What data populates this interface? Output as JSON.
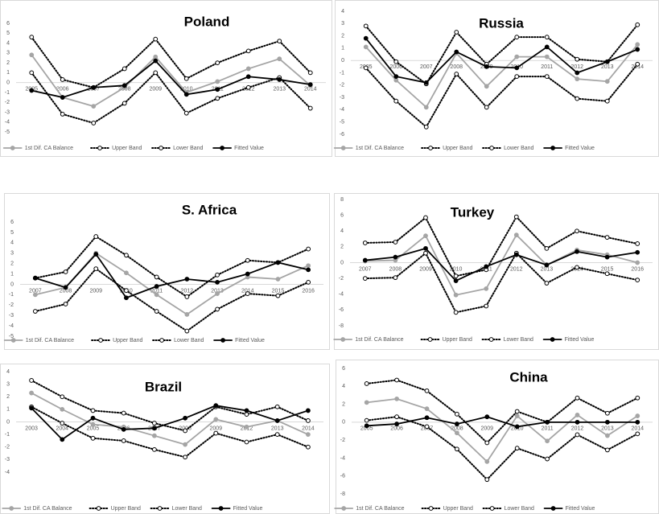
{
  "chart_data": [
    {
      "type": "line",
      "title": "Poland",
      "categories": [
        "2005",
        "2006",
        "2007",
        "2008",
        "2009",
        "2010",
        "2011",
        "2012",
        "2013",
        "2014"
      ],
      "ylim": [
        -5,
        6
      ],
      "yticks": [
        -5,
        -4,
        -3,
        -2,
        -1,
        0,
        1,
        2,
        3,
        4,
        5,
        6
      ],
      "grid": false,
      "legend": "bottom",
      "series": [
        {
          "name": "1st Dif. CA Balance",
          "color": "#a5a5a5",
          "dash": "solid",
          "marker": "filled",
          "values": [
            2.8,
            -1.5,
            -2.4,
            -0.5,
            2.6,
            -1.0,
            0.1,
            1.4,
            2.4,
            -0.3
          ]
        },
        {
          "name": "Upper Band",
          "color": "#000000",
          "dash": "dotted",
          "marker": "hollow",
          "values": [
            4.6,
            0.3,
            -0.5,
            1.4,
            4.4,
            0.4,
            2.0,
            3.2,
            4.2,
            1.0
          ]
        },
        {
          "name": "Lower Band",
          "color": "#000000",
          "dash": "dotted",
          "marker": "hollow",
          "values": [
            1.0,
            -3.2,
            -4.1,
            -2.1,
            1.0,
            -3.1,
            -1.6,
            -0.5,
            0.5,
            -2.6
          ]
        },
        {
          "name": "Fitted Value",
          "color": "#000000",
          "dash": "solid",
          "marker": "filled",
          "values": [
            -0.8,
            -1.5,
            -0.5,
            -0.3,
            2.2,
            -1.2,
            -0.7,
            0.6,
            0.3,
            -0.2
          ]
        }
      ]
    },
    {
      "type": "line",
      "title": "Russia",
      "categories": [
        "2005",
        "2006",
        "2007",
        "2008",
        "2009",
        "2010",
        "2011",
        "2012",
        "2013",
        "2014"
      ],
      "ylim": [
        -6,
        4
      ],
      "yticks": [
        -6,
        -5,
        -4,
        -3,
        -2,
        -1,
        0,
        1,
        2,
        3,
        4
      ],
      "grid": false,
      "legend": "bottom",
      "series": [
        {
          "name": "1st Dif. CA Balance",
          "color": "#a5a5a5",
          "dash": "solid",
          "marker": "filled",
          "values": [
            1.1,
            -1.6,
            -3.8,
            0.6,
            -2.1,
            0.3,
            0.3,
            -1.5,
            -1.7,
            1.3
          ]
        },
        {
          "name": "Upper Band",
          "color": "#000000",
          "dash": "dotted",
          "marker": "hollow",
          "values": [
            2.8,
            -0.1,
            -1.9,
            2.3,
            -0.3,
            1.9,
            1.9,
            0.1,
            -0.1,
            2.9
          ]
        },
        {
          "name": "Lower Band",
          "color": "#000000",
          "dash": "dotted",
          "marker": "hollow",
          "values": [
            -0.6,
            -3.3,
            -5.4,
            -1.1,
            -3.8,
            -1.3,
            -1.3,
            -3.1,
            -3.3,
            -0.3
          ]
        },
        {
          "name": "Fitted Value",
          "color": "#000000",
          "dash": "solid",
          "marker": "filled",
          "values": [
            1.8,
            -1.3,
            -1.8,
            0.7,
            -0.5,
            -0.6,
            1.1,
            -1.0,
            -0.1,
            0.9
          ]
        }
      ]
    },
    {
      "type": "line",
      "title": "S. Africa",
      "categories": [
        "2007",
        "2008",
        "2009",
        "2010",
        "2011",
        "2012",
        "2013",
        "2014",
        "2015",
        "2016"
      ],
      "ylim": [
        -5,
        6
      ],
      "yticks": [
        -5,
        -4,
        -3,
        -2,
        -1,
        0,
        1,
        2,
        3,
        4,
        5,
        6
      ],
      "grid": false,
      "legend": "bottom",
      "series": [
        {
          "name": "1st Dif. CA Balance",
          "color": "#a5a5a5",
          "dash": "solid",
          "marker": "filled",
          "values": [
            -1.0,
            -0.3,
            3.0,
            1.1,
            -1.0,
            -2.9,
            -0.9,
            0.7,
            0.5,
            1.8
          ]
        },
        {
          "name": "Upper Band",
          "color": "#000000",
          "dash": "dotted",
          "marker": "hollow",
          "values": [
            0.6,
            1.2,
            4.6,
            2.8,
            0.7,
            -1.2,
            0.9,
            2.3,
            2.1,
            3.4
          ]
        },
        {
          "name": "Lower Band",
          "color": "#000000",
          "dash": "dotted",
          "marker": "hollow",
          "values": [
            -2.6,
            -1.9,
            1.5,
            -0.6,
            -2.6,
            -4.5,
            -2.4,
            -0.9,
            -1.1,
            0.2
          ]
        },
        {
          "name": "Fitted Value",
          "color": "#000000",
          "dash": "solid",
          "marker": "filled",
          "values": [
            0.6,
            -0.3,
            2.9,
            -1.3,
            -0.2,
            0.5,
            0.2,
            1.0,
            2.1,
            1.4
          ]
        }
      ]
    },
    {
      "type": "line",
      "title": "Turkey",
      "categories": [
        "2007",
        "2008",
        "2009",
        "2010",
        "2011",
        "2012",
        "2013",
        "2014",
        "2015",
        "2016"
      ],
      "ylim": [
        -8,
        8
      ],
      "yticks": [
        -8,
        -6,
        -4,
        -2,
        0,
        2,
        4,
        6,
        8
      ],
      "grid": false,
      "legend": "bottom",
      "series": [
        {
          "name": "1st Dif. CA Balance",
          "color": "#a5a5a5",
          "dash": "solid",
          "marker": "filled",
          "values": [
            0.2,
            0.3,
            3.4,
            -4.1,
            -3.3,
            3.5,
            -0.3,
            1.6,
            1.0,
            0.0
          ]
        },
        {
          "name": "Upper Band",
          "color": "#000000",
          "dash": "dotted",
          "marker": "hollow",
          "values": [
            2.5,
            2.6,
            5.7,
            -1.7,
            -0.9,
            5.8,
            1.8,
            4.0,
            3.2,
            2.4
          ]
        },
        {
          "name": "Lower Band",
          "color": "#000000",
          "dash": "dotted",
          "marker": "hollow",
          "values": [
            -2.0,
            -1.9,
            1.2,
            -6.3,
            -5.5,
            1.2,
            -2.6,
            -0.6,
            -1.4,
            -2.2
          ]
        },
        {
          "name": "Fitted Value",
          "color": "#000000",
          "dash": "solid",
          "marker": "filled",
          "values": [
            0.3,
            0.7,
            1.8,
            -2.3,
            -0.5,
            1.0,
            -0.3,
            1.4,
            0.7,
            1.3
          ]
        }
      ]
    },
    {
      "type": "line",
      "title": "Brazil",
      "categories": [
        "2003",
        "2004",
        "2005",
        "2006",
        "2007",
        "2008",
        "2009",
        "2012",
        "2013",
        "2014"
      ],
      "ylim": [
        -4,
        4
      ],
      "yticks": [
        -4,
        -3,
        -2,
        -1,
        0,
        1,
        2,
        3,
        4
      ],
      "grid": false,
      "legend": "bottom",
      "series": [
        {
          "name": "1st Dif. CA Balance",
          "color": "#a5a5a5",
          "dash": "solid",
          "marker": "filled",
          "values": [
            2.3,
            1.0,
            -0.2,
            -0.4,
            -1.1,
            -1.8,
            0.2,
            -0.4,
            0.1,
            -1.0
          ]
        },
        {
          "name": "Upper Band",
          "color": "#000000",
          "dash": "dotted",
          "marker": "hollow",
          "values": [
            3.3,
            2.0,
            0.9,
            0.7,
            -0.1,
            -0.7,
            1.2,
            0.6,
            1.2,
            0.1
          ]
        },
        {
          "name": "Lower Band",
          "color": "#000000",
          "dash": "dotted",
          "marker": "hollow",
          "values": [
            1.2,
            -0.1,
            -1.3,
            -1.5,
            -2.2,
            -2.8,
            -0.9,
            -1.6,
            -1.0,
            -2.0
          ]
        },
        {
          "name": "Fitted Value",
          "color": "#000000",
          "dash": "solid",
          "marker": "filled",
          "values": [
            1.1,
            -1.4,
            0.3,
            -0.6,
            -0.5,
            0.3,
            1.3,
            0.9,
            0.1,
            0.9
          ]
        }
      ]
    },
    {
      "type": "line",
      "title": "China",
      "categories": [
        "2005",
        "2006",
        "2007",
        "2008",
        "2009",
        "2010",
        "2011",
        "2012",
        "2013",
        "2014"
      ],
      "ylim": [
        -8,
        6
      ],
      "yticks": [
        -8,
        -6,
        -4,
        -2,
        0,
        2,
        4,
        6
      ],
      "grid": false,
      "legend": "bottom",
      "series": [
        {
          "name": "1st Dif. CA Balance",
          "color": "#a5a5a5",
          "dash": "solid",
          "marker": "filled",
          "values": [
            2.2,
            2.6,
            1.5,
            -1.2,
            -4.4,
            0.7,
            -2.1,
            0.8,
            -1.5,
            0.7
          ]
        },
        {
          "name": "Upper Band",
          "color": "#000000",
          "dash": "dotted",
          "marker": "hollow",
          "values": [
            4.3,
            4.7,
            3.5,
            0.9,
            -2.3,
            1.2,
            0.0,
            2.7,
            1.0,
            2.7
          ]
        },
        {
          "name": "Lower Band",
          "color": "#000000",
          "dash": "dotted",
          "marker": "hollow",
          "values": [
            0.2,
            0.6,
            -0.5,
            -3.0,
            -6.4,
            -2.9,
            -4.1,
            -1.4,
            -3.1,
            -1.3
          ]
        },
        {
          "name": "Fitted Value",
          "color": "#000000",
          "dash": "solid",
          "marker": "filled",
          "values": [
            -0.4,
            -0.2,
            0.5,
            -0.2,
            0.6,
            -0.5,
            0.0,
            0.0,
            0.0,
            0.0
          ]
        }
      ]
    }
  ]
}
